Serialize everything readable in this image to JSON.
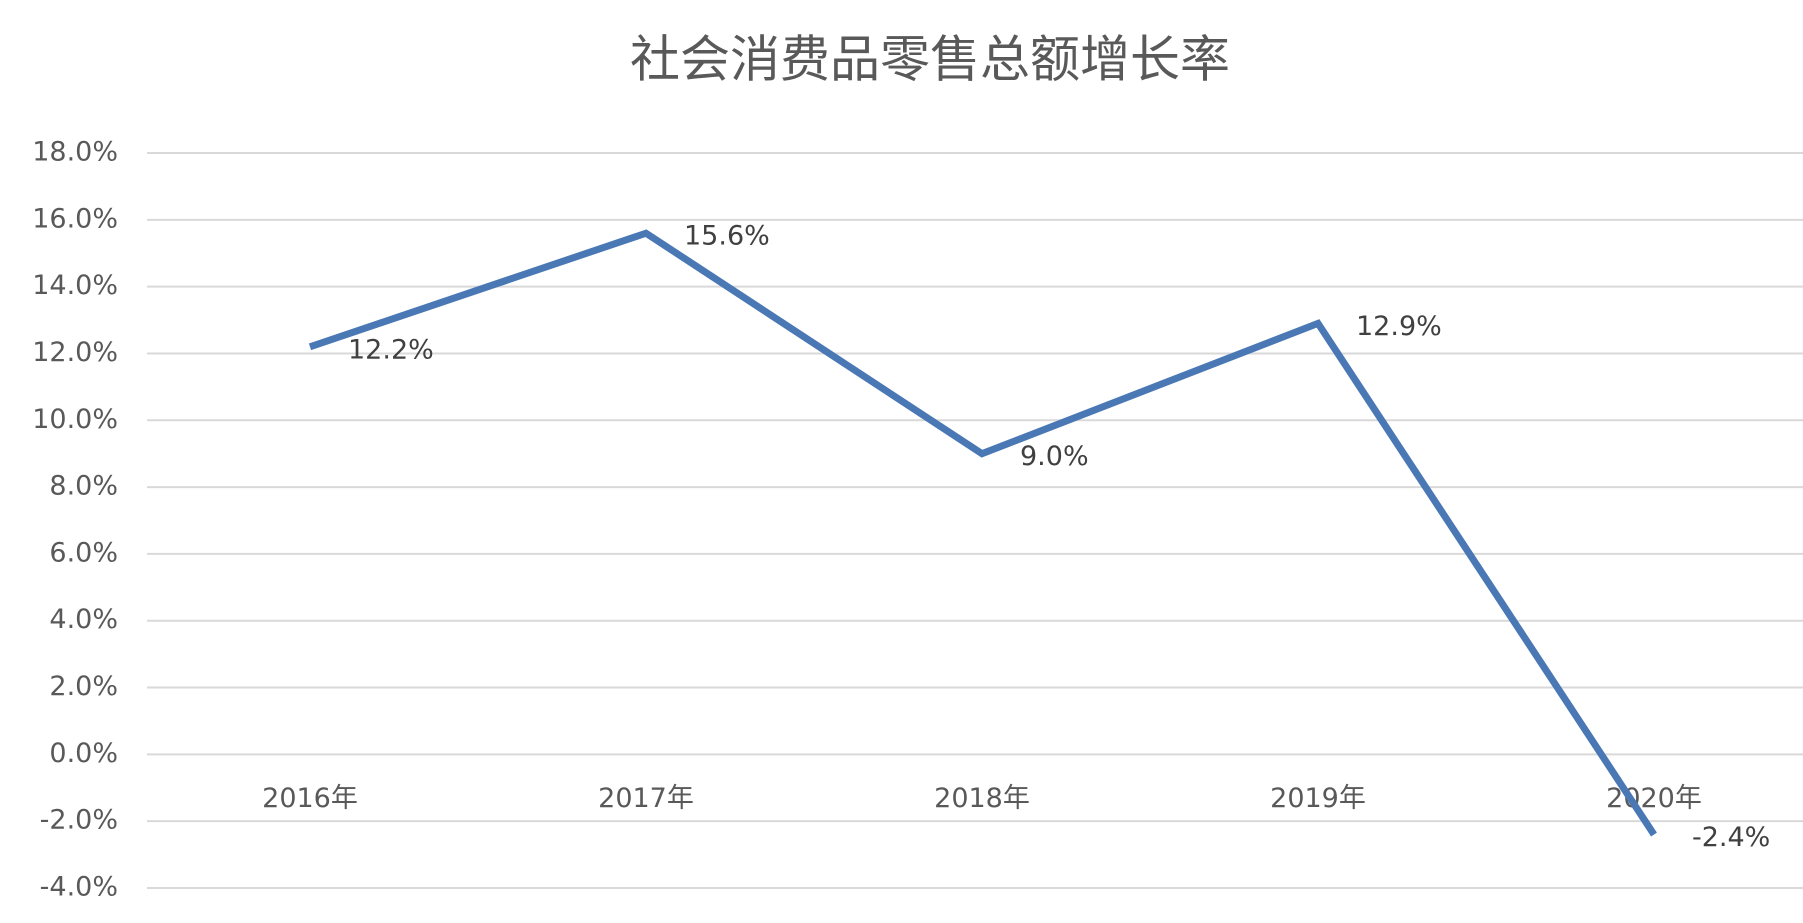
{
  "chart_data": {
    "type": "line",
    "title": "社会消费品零售总额增长率",
    "categories": [
      "2016年",
      "2017年",
      "2018年",
      "2019年",
      "2020年"
    ],
    "values": [
      12.2,
      15.6,
      9.0,
      12.9,
      -2.4
    ],
    "value_labels": [
      "12.2%",
      "15.6%",
      "9.0%",
      "12.9%",
      "-2.4%"
    ],
    "color": "#4a78b5",
    "ylim": [
      -4,
      18
    ],
    "yticks": [
      {
        "value": -4,
        "label": "-4.0%"
      },
      {
        "value": -2,
        "label": "-2.0%"
      },
      {
        "value": 0,
        "label": "0.0%"
      },
      {
        "value": 2,
        "label": "2.0%"
      },
      {
        "value": 4,
        "label": "4.0%"
      },
      {
        "value": 6,
        "label": "6.0%"
      },
      {
        "value": 8,
        "label": "8.0%"
      },
      {
        "value": 10,
        "label": "10.0%"
      },
      {
        "value": 12,
        "label": "12.0%"
      },
      {
        "value": 14,
        "label": "14.0%"
      },
      {
        "value": 16,
        "label": "16.0%"
      },
      {
        "value": 18,
        "label": "18.0%"
      }
    ],
    "grid": true
  }
}
